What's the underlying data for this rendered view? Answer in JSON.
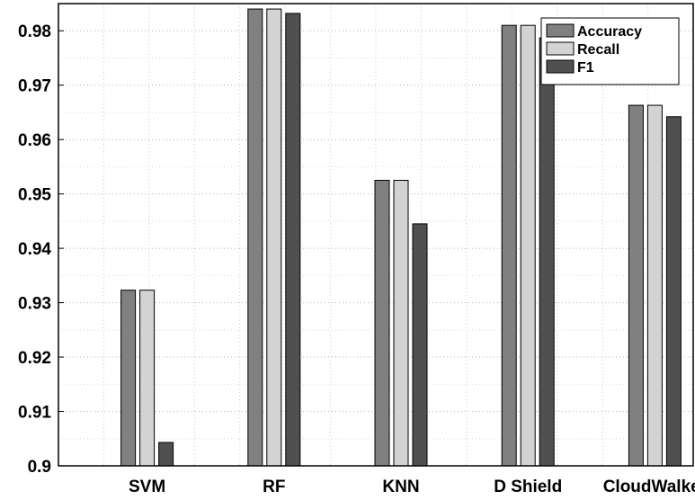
{
  "chart_data": {
    "type": "bar",
    "categories": [
      "SVM",
      "RF",
      "KNN",
      "D Shield",
      "CloudWalker"
    ],
    "series": [
      {
        "name": "Accuracy",
        "color": "#808080",
        "values": [
          0.9323,
          0.984,
          0.9525,
          0.981,
          0.9663
        ]
      },
      {
        "name": "Recall",
        "color": "#d3d3d3",
        "values": [
          0.9323,
          0.984,
          0.9525,
          0.981,
          0.9663
        ]
      },
      {
        "name": "F1",
        "color": "#505050",
        "values": [
          0.9043,
          0.9832,
          0.9445,
          0.9787,
          0.9642
        ]
      }
    ],
    "ylim": [
      0.9,
      0.985
    ],
    "yticks": [
      0.9,
      0.91,
      0.92,
      0.93,
      0.94,
      0.95,
      0.96,
      0.97,
      0.98
    ],
    "ytick_labels": [
      "0.9",
      "0.91",
      "0.92",
      "0.93",
      "0.94",
      "0.95",
      "0.96",
      "0.97",
      "0.98"
    ],
    "title": "",
    "xlabel": "",
    "ylabel": "",
    "grid": true,
    "legend": "top-right"
  }
}
